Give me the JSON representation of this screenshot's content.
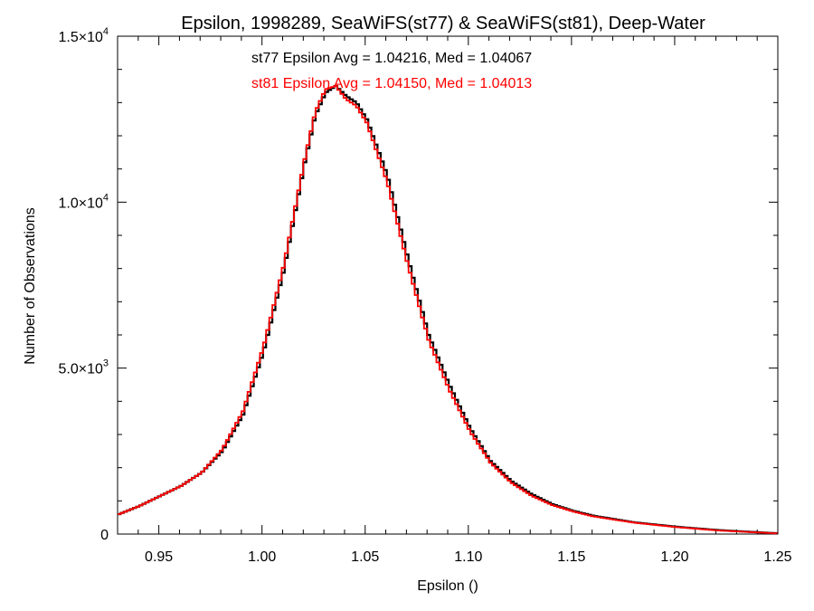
{
  "chart_data": {
    "type": "line",
    "title": "Epsilon, 1998289, SeaWiFS(st77) & SeaWiFS(st81), Deep-Water",
    "xlabel": "Epsilon ()",
    "ylabel": "Number of Observations",
    "xlim": [
      0.93,
      1.25
    ],
    "ylim": [
      0,
      15000
    ],
    "x_ticks": [
      0.95,
      1.0,
      1.05,
      1.1,
      1.15,
      1.2,
      1.25
    ],
    "x_tick_labels": [
      "0.95",
      "1.00",
      "1.05",
      "1.10",
      "1.15",
      "1.20",
      "1.25"
    ],
    "y_ticks": [
      0,
      5000,
      10000,
      15000
    ],
    "y_tick_labels": [
      {
        "mantissa": "0",
        "exponent": ""
      },
      {
        "mantissa": "5.0×10",
        "exponent": "3"
      },
      {
        "mantissa": "1.0×10",
        "exponent": "4"
      },
      {
        "mantissa": "1.5×10",
        "exponent": "4"
      }
    ],
    "annotations": [
      {
        "text": "st77 Epsilon Avg = 1.04216, Med = 1.04067",
        "color": "#000000"
      },
      {
        "text": "st81 Epsilon Avg = 1.04150, Med = 1.04013",
        "color": "#ff0000"
      }
    ],
    "grid": false,
    "step": "histogram",
    "x": [
      0.93,
      0.94,
      0.95,
      0.96,
      0.97,
      0.98,
      0.99,
      1.0,
      1.01,
      1.02,
      1.025,
      1.03,
      1.035,
      1.04,
      1.045,
      1.05,
      1.06,
      1.07,
      1.08,
      1.09,
      1.1,
      1.11,
      1.12,
      1.13,
      1.14,
      1.15,
      1.16,
      1.18,
      1.2,
      1.22,
      1.25
    ],
    "series": [
      {
        "name": "st77",
        "color": "#000000",
        "values": [
          600,
          850,
          1150,
          1450,
          1850,
          2500,
          3600,
          5500,
          8000,
          11200,
          12600,
          13300,
          13500,
          13200,
          13000,
          12500,
          10800,
          8300,
          6000,
          4500,
          3200,
          2200,
          1600,
          1200,
          900,
          700,
          550,
          350,
          220,
          120,
          20
        ]
      },
      {
        "name": "st81",
        "color": "#ff0000",
        "values": [
          600,
          850,
          1150,
          1450,
          1850,
          2550,
          3700,
          5650,
          8150,
          11300,
          12700,
          13400,
          13500,
          13100,
          12900,
          12400,
          10600,
          8100,
          5850,
          4350,
          3100,
          2150,
          1550,
          1150,
          870,
          680,
          530,
          340,
          210,
          110,
          15
        ]
      }
    ]
  }
}
